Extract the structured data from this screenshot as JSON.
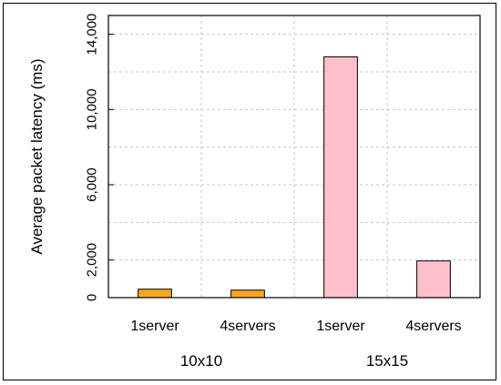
{
  "chart_data": {
    "type": "bar",
    "ylabel": "Average packet latency (ms)",
    "ylim": [
      0,
      15000
    ],
    "yticks": [
      0,
      2000,
      6000,
      10000,
      14000
    ],
    "ytick_labels": [
      "0",
      "2,000",
      "6,000",
      "10,000",
      "14,000"
    ],
    "grid": true,
    "groups": [
      {
        "label": "10x10",
        "color": "#f5a623",
        "bars": [
          {
            "label": "1server",
            "value": 450
          },
          {
            "label": "4servers",
            "value": 400
          }
        ]
      },
      {
        "label": "15x15",
        "color": "#ffc0cb",
        "bars": [
          {
            "label": "1server",
            "value": 12800
          },
          {
            "label": "4servers",
            "value": 1950
          }
        ]
      }
    ]
  }
}
